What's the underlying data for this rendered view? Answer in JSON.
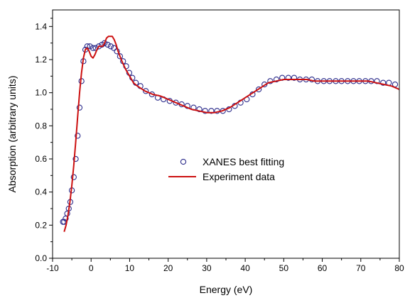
{
  "chart_data": {
    "type": "scatter",
    "title": "",
    "xlabel": "Energy (eV)",
    "ylabel": "Absorption (arbitrary units)",
    "xlim": [
      -10,
      80
    ],
    "ylim": [
      0.0,
      1.5
    ],
    "xticks": [
      -10,
      0,
      10,
      20,
      30,
      40,
      50,
      60,
      70,
      80
    ],
    "xtick_labels": [
      "-10",
      "0",
      "10",
      "20",
      "30",
      "40",
      "50",
      "60",
      "70",
      "80"
    ],
    "yticks": [
      0.0,
      0.2,
      0.4,
      0.6,
      0.8,
      1.0,
      1.2,
      1.4
    ],
    "ytick_labels": [
      "0.0",
      "0.2",
      "0.4",
      "0.6",
      "0.8",
      "1.0",
      "1.2",
      "1.4"
    ],
    "grid": false,
    "legend": {
      "position": "center"
    },
    "series": [
      {
        "name": "XANES best fitting",
        "kind": "scatter",
        "marker": "open-circle",
        "color": "#2a2a8a",
        "x": [
          -7.3,
          -7.0,
          -6.6,
          -6.2,
          -5.8,
          -5.4,
          -5.0,
          -4.5,
          -4.0,
          -3.5,
          -3.0,
          -2.5,
          -2.0,
          -1.5,
          -1.0,
          -0.3,
          0.5,
          1.2,
          2.0,
          2.8,
          3.5,
          4.3,
          5.1,
          5.9,
          6.7,
          7.5,
          8.3,
          9.1,
          9.9,
          10.7,
          11.6,
          12.8,
          14.2,
          15.8,
          17.3,
          18.8,
          20.4,
          22.0,
          23.5,
          25.0,
          26.6,
          28.1,
          29.6,
          31.2,
          32.7,
          34.2,
          35.8,
          37.3,
          38.8,
          40.4,
          41.9,
          43.5,
          45.0,
          46.5,
          48.1,
          49.6,
          51.2,
          52.7,
          54.2,
          55.8,
          57.3,
          58.8,
          60.4,
          61.9,
          63.5,
          65.0,
          66.6,
          68.1,
          69.6,
          71.2,
          72.7,
          74.2,
          75.8,
          77.3,
          78.9,
          80.4
        ],
        "y": [
          0.22,
          0.22,
          0.24,
          0.27,
          0.3,
          0.34,
          0.41,
          0.49,
          0.6,
          0.74,
          0.91,
          1.07,
          1.19,
          1.26,
          1.28,
          1.28,
          1.27,
          1.27,
          1.28,
          1.29,
          1.3,
          1.29,
          1.28,
          1.27,
          1.25,
          1.22,
          1.19,
          1.16,
          1.12,
          1.09,
          1.06,
          1.04,
          1.01,
          0.99,
          0.97,
          0.96,
          0.95,
          0.94,
          0.93,
          0.92,
          0.91,
          0.9,
          0.89,
          0.89,
          0.89,
          0.89,
          0.9,
          0.92,
          0.94,
          0.96,
          0.99,
          1.02,
          1.05,
          1.07,
          1.08,
          1.09,
          1.09,
          1.09,
          1.08,
          1.08,
          1.08,
          1.07,
          1.07,
          1.07,
          1.07,
          1.07,
          1.07,
          1.07,
          1.07,
          1.07,
          1.07,
          1.07,
          1.06,
          1.06,
          1.05,
          1.04
        ]
      },
      {
        "name": "Experiment data",
        "kind": "line",
        "color": "#cc1010",
        "x": [
          -7.0,
          -6.5,
          -6.0,
          -5.5,
          -5.0,
          -4.5,
          -4.0,
          -3.5,
          -3.0,
          -2.5,
          -2.0,
          -1.5,
          -1.0,
          -0.5,
          0.0,
          0.5,
          1.0,
          1.5,
          2.0,
          2.5,
          3.0,
          3.5,
          4.0,
          4.5,
          5.0,
          5.5,
          6.0,
          6.5,
          7.0,
          7.5,
          8.0,
          9.0,
          10.0,
          11.0,
          12.0,
          14.0,
          16.0,
          18.0,
          20.0,
          22.0,
          24.0,
          26.0,
          28.0,
          30.0,
          32.0,
          34.0,
          36.0,
          38.0,
          40.0,
          42.0,
          44.0,
          46.0,
          48.0,
          50.0,
          52.0,
          54.0,
          56.0,
          58.0,
          60.0,
          62.0,
          64.0,
          66.0,
          68.0,
          70.0,
          72.0,
          74.0,
          76.0,
          78.0,
          80.0
        ],
        "y": [
          0.16,
          0.2,
          0.26,
          0.34,
          0.44,
          0.56,
          0.7,
          0.85,
          1.0,
          1.12,
          1.21,
          1.26,
          1.27,
          1.25,
          1.22,
          1.21,
          1.23,
          1.26,
          1.28,
          1.28,
          1.28,
          1.3,
          1.33,
          1.34,
          1.34,
          1.34,
          1.32,
          1.29,
          1.25,
          1.22,
          1.19,
          1.14,
          1.1,
          1.06,
          1.04,
          1.01,
          0.99,
          0.98,
          0.96,
          0.94,
          0.92,
          0.9,
          0.89,
          0.88,
          0.88,
          0.89,
          0.91,
          0.94,
          0.97,
          1.0,
          1.03,
          1.06,
          1.07,
          1.08,
          1.08,
          1.08,
          1.08,
          1.07,
          1.07,
          1.07,
          1.07,
          1.07,
          1.07,
          1.07,
          1.07,
          1.06,
          1.05,
          1.04,
          1.02
        ]
      }
    ]
  }
}
